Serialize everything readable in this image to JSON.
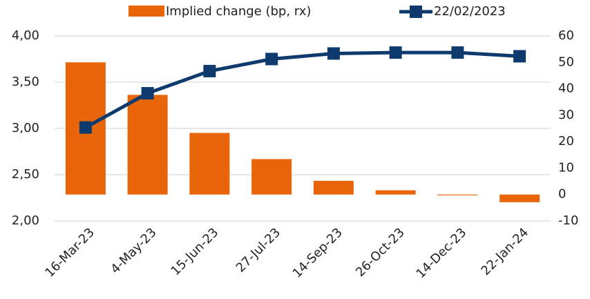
{
  "chart_data": {
    "type": "bar_line",
    "categories": [
      "16-Mar-23",
      "4-May-23",
      "15-Jun-23",
      "27-Jul-23",
      "14-Sep-23",
      "26-Oct-23",
      "14-Dec-23",
      "22-Jan-24"
    ],
    "series": [
      {
        "name": "Implied change (bp, rx)",
        "type": "bar",
        "axis": "y2",
        "color": "#e8650a",
        "values": [
          50,
          37.7,
          23.3,
          13.4,
          5.2,
          1.6,
          -0.3,
          -2.9
        ]
      },
      {
        "name": "22/02/2023",
        "type": "line",
        "axis": "y",
        "color": "#0e3a6e",
        "values": [
          3.01,
          3.38,
          3.62,
          3.75,
          3.81,
          3.82,
          3.82,
          3.78
        ]
      }
    ],
    "ylim": [
      2,
      4
    ],
    "yticks": [
      {
        "value": 2,
        "label": "2,00"
      },
      {
        "value": 2.5,
        "label": "2,50"
      },
      {
        "value": 3,
        "label": "3,00"
      },
      {
        "value": 3.5,
        "label": "3,50"
      },
      {
        "value": 4,
        "label": "4,00"
      }
    ],
    "y2lim": [
      -10,
      60
    ],
    "y2ticks": [
      -10,
      0,
      10,
      20,
      30,
      40,
      50,
      60
    ],
    "grid": true,
    "legend": "top"
  }
}
